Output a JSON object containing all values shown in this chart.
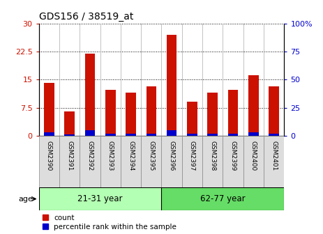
{
  "title": "GDS156 / 38519_at",
  "samples": [
    "GSM2390",
    "GSM2391",
    "GSM2392",
    "GSM2393",
    "GSM2394",
    "GSM2395",
    "GSM2396",
    "GSM2397",
    "GSM2398",
    "GSM2399",
    "GSM2400",
    "GSM2401"
  ],
  "red_values": [
    14.2,
    6.5,
    22.0,
    12.2,
    11.5,
    13.2,
    27.0,
    9.0,
    11.5,
    12.2,
    16.2,
    13.2
  ],
  "blue_values": [
    1.0,
    0.4,
    1.5,
    0.5,
    0.5,
    0.6,
    1.5,
    0.6,
    0.5,
    0.5,
    1.0,
    0.5
  ],
  "groups": [
    {
      "label": "21-31 year",
      "start": 0,
      "end": 6,
      "color": "#b3ffb3"
    },
    {
      "label": "62-77 year",
      "start": 6,
      "end": 12,
      "color": "#66dd66"
    }
  ],
  "ylim_left": [
    0,
    30
  ],
  "ylim_right": [
    0,
    100
  ],
  "yticks_left": [
    0,
    7.5,
    15,
    22.5,
    30
  ],
  "yticks_right": [
    0,
    25,
    50,
    75,
    100
  ],
  "ytick_labels_left": [
    "0",
    "7.5",
    "15",
    "22.5",
    "30"
  ],
  "ytick_labels_right": [
    "0",
    "25",
    "50",
    "75",
    "100%"
  ],
  "red_color": "#cc1100",
  "blue_color": "#0000cc",
  "bar_width": 0.5,
  "background_color": "#ffffff",
  "age_label": "age",
  "legend_count": "count",
  "legend_percentile": "percentile rank within the sample",
  "label_bg_color": "#dddddd"
}
